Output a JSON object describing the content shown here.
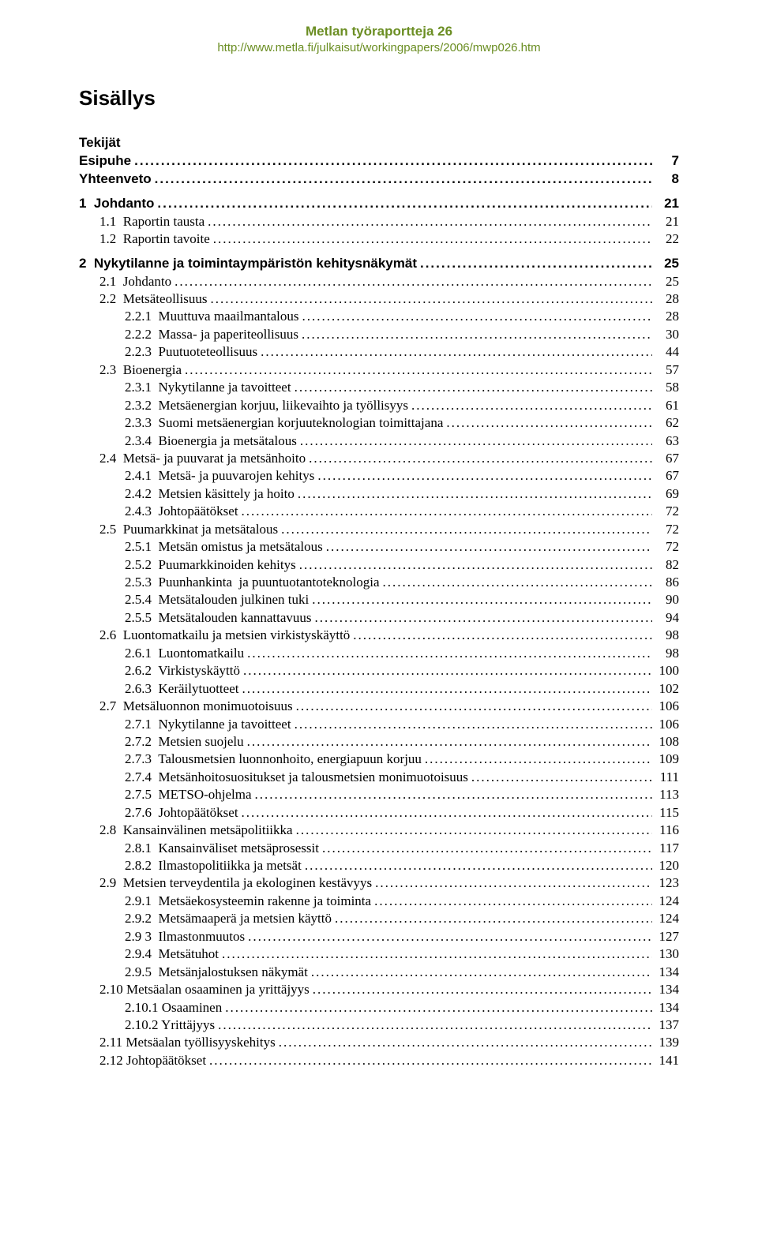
{
  "header": {
    "title": "Metlan työraportteja 26",
    "url": "http://www.metla.fi/julkaisut/workingpapers/2006/mwp026.htm"
  },
  "main_title": "Sisällys",
  "front_matter": [
    {
      "label": "Tekijät",
      "page": ""
    },
    {
      "label": "Esipuhe",
      "page": "7"
    },
    {
      "label": "Yhteenveto",
      "page": "8"
    }
  ],
  "toc": [
    {
      "type": "chapter",
      "label": "1  Johdanto",
      "page": "21"
    },
    {
      "type": "section",
      "label": "1.1  Raportin tausta",
      "page": "21"
    },
    {
      "type": "section",
      "label": "1.2  Raportin tavoite",
      "page": "22"
    },
    {
      "type": "chapter",
      "label": "2  Nykytilanne ja toimintaympäristön kehitysnäkymät",
      "page": "25"
    },
    {
      "type": "section",
      "label": "2.1  Johdanto",
      "page": "25"
    },
    {
      "type": "section",
      "label": "2.2  Metsäteollisuus",
      "page": "28"
    },
    {
      "type": "subsection",
      "label": "2.2.1  Muuttuva maailmantalous",
      "page": "28"
    },
    {
      "type": "subsection",
      "label": "2.2.2  Massa- ja paperiteollisuus",
      "page": "30"
    },
    {
      "type": "subsection",
      "label": "2.2.3  Puutuoteteollisuus",
      "page": "44"
    },
    {
      "type": "section",
      "label": "2.3  Bioenergia",
      "page": "57"
    },
    {
      "type": "subsection",
      "label": "2.3.1  Nykytilanne ja tavoitteet",
      "page": "58"
    },
    {
      "type": "subsection",
      "label": "2.3.2  Metsäenergian korjuu, liikevaihto ja työllisyys",
      "page": "61"
    },
    {
      "type": "subsection",
      "label": "2.3.3  Suomi metsäenergian korjuuteknologian toimittajana",
      "page": "62"
    },
    {
      "type": "subsection",
      "label": "2.3.4  Bioenergia ja metsätalous",
      "page": "63"
    },
    {
      "type": "section",
      "label": "2.4  Metsä- ja puuvarat ja metsänhoito",
      "page": "67"
    },
    {
      "type": "subsection",
      "label": "2.4.1  Metsä- ja puuvarojen kehitys",
      "page": "67"
    },
    {
      "type": "subsection",
      "label": "2.4.2  Metsien käsittely ja hoito",
      "page": "69"
    },
    {
      "type": "subsection",
      "label": "2.4.3  Johtopäätökset",
      "page": "72"
    },
    {
      "type": "section",
      "label": "2.5  Puumarkkinat ja metsätalous",
      "page": "72"
    },
    {
      "type": "subsection",
      "label": "2.5.1  Metsän omistus ja metsätalous",
      "page": "72"
    },
    {
      "type": "subsection",
      "label": "2.5.2  Puumarkkinoiden kehitys",
      "page": "82"
    },
    {
      "type": "subsection",
      "label": "2.5.3  Puunhankinta  ja puuntuotantoteknologia",
      "page": "86"
    },
    {
      "type": "subsection",
      "label": "2.5.4  Metsätalouden julkinen tuki",
      "page": "90"
    },
    {
      "type": "subsection",
      "label": "2.5.5  Metsätalouden kannattavuus",
      "page": "94"
    },
    {
      "type": "section",
      "label": "2.6  Luontomatkailu ja metsien virkistyskäyttö",
      "page": "98"
    },
    {
      "type": "subsection",
      "label": "2.6.1  Luontomatkailu",
      "page": "98"
    },
    {
      "type": "subsection",
      "label": "2.6.2  Virkistyskäyttö",
      "page": "100"
    },
    {
      "type": "subsection",
      "label": "2.6.3  Keräilytuotteet",
      "page": "102"
    },
    {
      "type": "section",
      "label": "2.7  Metsäluonnon monimuotoisuus",
      "page": "106"
    },
    {
      "type": "subsection",
      "label": "2.7.1  Nykytilanne ja tavoitteet",
      "page": "106"
    },
    {
      "type": "subsection",
      "label": "2.7.2  Metsien suojelu",
      "page": "108"
    },
    {
      "type": "subsection",
      "label": "2.7.3  Talousmetsien luonnonhoito, energiapuun korjuu",
      "page": "109"
    },
    {
      "type": "subsection",
      "label": "2.7.4  Metsänhoitosuositukset ja talousmetsien monimuotoisuus",
      "page": "111"
    },
    {
      "type": "subsection",
      "label": "2.7.5  METSO-ohjelma",
      "page": "113"
    },
    {
      "type": "subsection",
      "label": "2.7.6  Johtopäätökset",
      "page": "115"
    },
    {
      "type": "section",
      "label": "2.8  Kansainvälinen metsäpolitiikka",
      "page": "116"
    },
    {
      "type": "subsection",
      "label": "2.8.1  Kansainväliset metsäprosessit",
      "page": "117"
    },
    {
      "type": "subsection",
      "label": "2.8.2  Ilmastopolitiikka ja metsät",
      "page": "120"
    },
    {
      "type": "section",
      "label": "2.9  Metsien terveydentila ja ekologinen kestävyys",
      "page": "123"
    },
    {
      "type": "subsection",
      "label": "2.9.1  Metsäekosysteemin rakenne ja toiminta",
      "page": "124"
    },
    {
      "type": "subsection",
      "label": "2.9.2  Metsämaaperä ja metsien käyttö",
      "page": "124"
    },
    {
      "type": "subsection",
      "label": "2.9 3  Ilmastonmuutos",
      "page": "127"
    },
    {
      "type": "subsection",
      "label": "2.9.4  Metsätuhot",
      "page": "130"
    },
    {
      "type": "subsection",
      "label": "2.9.5  Metsänjalostuksen näkymät",
      "page": "134"
    },
    {
      "type": "section",
      "label": "2.10 Metsäalan osaaminen ja yrittäjyys",
      "page": "134"
    },
    {
      "type": "subsection",
      "label": "2.10.1 Osaaminen",
      "page": "134"
    },
    {
      "type": "subsection",
      "label": "2.10.2 Yrittäjyys",
      "page": "137"
    },
    {
      "type": "section",
      "label": "2.11 Metsäalan työllisyyskehitys",
      "page": "139"
    },
    {
      "type": "section",
      "label": "2.12 Johtopäätökset",
      "page": "141"
    }
  ],
  "colors": {
    "accent": "#6b8e23",
    "text": "#000000",
    "background": "#ffffff"
  }
}
